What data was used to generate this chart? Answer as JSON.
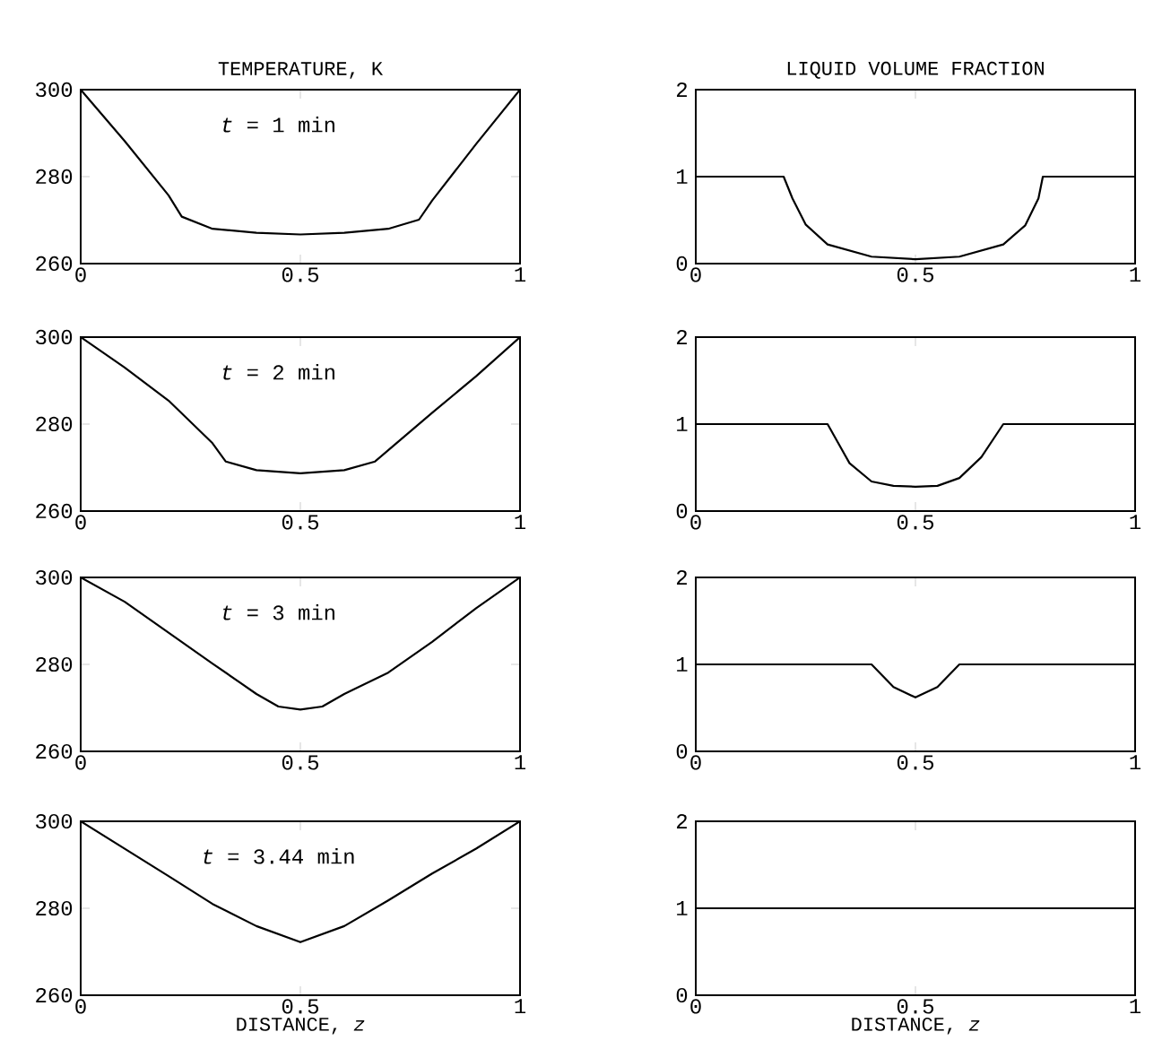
{
  "chart_data": [
    {
      "type": "line",
      "title": "TEMPERATURE, K",
      "annotations": [
        "*t* = 1 min"
      ],
      "color": "#000000",
      "xlim": [
        0,
        1
      ],
      "ylim": [
        260,
        300
      ],
      "xticks": [
        0,
        0.5,
        1
      ],
      "yticks": [
        260,
        280,
        300
      ],
      "x": [
        0,
        0.1,
        0.2,
        0.23,
        0.3,
        0.4,
        0.5,
        0.6,
        0.7,
        0.77,
        0.8,
        0.9,
        1
      ],
      "values": [
        300,
        288.2,
        275.7,
        270.8,
        268,
        267.1,
        266.7,
        267.1,
        268,
        270.1,
        274.5,
        287.5,
        300
      ]
    },
    {
      "type": "line",
      "title": "LIQUID VOLUME FRACTION",
      "color": "#000000",
      "xlim": [
        0,
        1
      ],
      "ylim": [
        0,
        2
      ],
      "xticks": [
        0,
        0.5,
        1
      ],
      "yticks": [
        0,
        1,
        2
      ],
      "x": [
        0,
        0.2,
        0.22,
        0.25,
        0.3,
        0.4,
        0.5,
        0.6,
        0.7,
        0.75,
        0.78,
        0.79,
        1
      ],
      "values": [
        1,
        1,
        0.75,
        0.45,
        0.22,
        0.08,
        0.05,
        0.08,
        0.22,
        0.44,
        0.75,
        1,
        1
      ]
    },
    {
      "type": "line",
      "annotations": [
        "*t* = 2 min"
      ],
      "color": "#000000",
      "xlim": [
        0,
        1
      ],
      "ylim": [
        260,
        300
      ],
      "xticks": [
        0,
        0.5,
        1
      ],
      "yticks": [
        260,
        280,
        300
      ],
      "x": [
        0,
        0.1,
        0.2,
        0.3,
        0.33,
        0.4,
        0.5,
        0.6,
        0.67,
        0.7,
        0.8,
        0.9,
        1
      ],
      "values": [
        300,
        293,
        285.4,
        275.6,
        271.4,
        269.4,
        268.7,
        269.4,
        271.4,
        274,
        282.6,
        291,
        300
      ]
    },
    {
      "type": "line",
      "color": "#000000",
      "xlim": [
        0,
        1
      ],
      "ylim": [
        0,
        2
      ],
      "xticks": [
        0,
        0.5,
        1
      ],
      "yticks": [
        0,
        1,
        2
      ],
      "x": [
        0,
        0.3,
        0.35,
        0.4,
        0.45,
        0.5,
        0.55,
        0.6,
        0.65,
        0.7,
        1
      ],
      "values": [
        1,
        1,
        0.55,
        0.34,
        0.29,
        0.28,
        0.29,
        0.38,
        0.62,
        1,
        1
      ]
    },
    {
      "type": "line",
      "annotations": [
        "*t* = 3 min"
      ],
      "color": "#000000",
      "xlim": [
        0,
        1
      ],
      "ylim": [
        260,
        300
      ],
      "xticks": [
        0,
        0.5,
        1
      ],
      "yticks": [
        260,
        280,
        300
      ],
      "x": [
        0,
        0.1,
        0.2,
        0.3,
        0.4,
        0.45,
        0.5,
        0.55,
        0.6,
        0.7,
        0.8,
        0.9,
        1
      ],
      "values": [
        300,
        294.4,
        287.3,
        280.2,
        273.2,
        270.3,
        269.6,
        270.3,
        273.2,
        278.1,
        285.2,
        292.9,
        300
      ]
    },
    {
      "type": "line",
      "color": "#000000",
      "xlim": [
        0,
        1
      ],
      "ylim": [
        0,
        2
      ],
      "xticks": [
        0,
        0.5,
        1
      ],
      "yticks": [
        0,
        1,
        2
      ],
      "x": [
        0,
        0.4,
        0.45,
        0.5,
        0.55,
        0.6,
        1
      ],
      "values": [
        1,
        1,
        0.74,
        0.62,
        0.74,
        1,
        1
      ]
    },
    {
      "type": "line",
      "annotations": [
        "*t* = 3.44 min"
      ],
      "xlabel": "DISTANCE, *z*",
      "color": "#000000",
      "xlim": [
        0,
        1
      ],
      "ylim": [
        260,
        300
      ],
      "xticks": [
        0,
        0.5,
        1
      ],
      "yticks": [
        260,
        280,
        300
      ],
      "x": [
        0,
        0.1,
        0.2,
        0.3,
        0.4,
        0.5,
        0.6,
        0.7,
        0.8,
        0.9,
        1
      ],
      "values": [
        300,
        293.7,
        287.4,
        281,
        275.9,
        272.2,
        275.9,
        281.8,
        288,
        293.7,
        300
      ]
    },
    {
      "type": "line",
      "xlabel": "DISTANCE, *z*",
      "color": "#000000",
      "xlim": [
        0,
        1
      ],
      "ylim": [
        0,
        2
      ],
      "xticks": [
        0,
        0.5,
        1
      ],
      "yticks": [
        0,
        1,
        2
      ],
      "x": [
        0,
        1
      ],
      "values": [
        1,
        1
      ]
    }
  ]
}
